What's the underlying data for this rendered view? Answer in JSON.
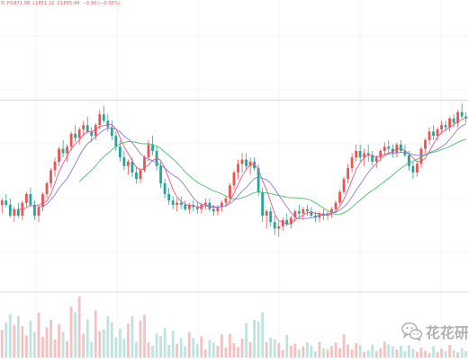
{
  "header": {
    "readout": [
      "O",
      "H1871.98",
      "L1851.22",
      "C1855.44",
      "−0.90 (−0.05%)"
    ]
  },
  "watermark": {
    "icon": "wechat-icon",
    "text": "花花研"
  },
  "colors": {
    "up": "#ef5350",
    "down": "#26a69a",
    "ma_short": "#e7548a",
    "ma_mid": "#7f7fe0",
    "ma_long": "#4cc26a",
    "grid": "#eeeeee",
    "crosshair": "#cccccc"
  },
  "chart_data": {
    "type": "candlestick",
    "panes": [
      "price",
      "volume"
    ],
    "grid": true,
    "price_range": [
      0,
      100
    ],
    "volume_range": [
      0,
      100
    ],
    "crosshair_level": 78.5,
    "moving_averages": [
      "short",
      "mid",
      "long"
    ],
    "candles": [
      [
        30,
        33,
        26,
        32,
        44
      ],
      [
        32,
        35,
        29,
        30,
        56
      ],
      [
        30,
        33,
        24,
        25,
        69
      ],
      [
        25,
        29,
        22,
        28,
        52
      ],
      [
        28,
        31,
        24,
        25,
        66
      ],
      [
        25,
        32,
        23,
        31,
        50
      ],
      [
        31,
        36,
        29,
        35,
        35
      ],
      [
        35,
        38,
        29,
        30,
        59
      ],
      [
        30,
        32,
        23,
        25,
        40
      ],
      [
        25,
        30,
        22,
        29,
        72
      ],
      [
        29,
        36,
        27,
        35,
        33
      ],
      [
        35,
        41,
        33,
        40,
        48
      ],
      [
        40,
        47,
        38,
        46,
        60
      ],
      [
        46,
        52,
        43,
        50,
        29
      ],
      [
        50,
        57,
        48,
        56,
        53
      ],
      [
        56,
        60,
        52,
        54,
        41
      ],
      [
        54,
        58,
        50,
        57,
        26
      ],
      [
        57,
        64,
        55,
        63,
        81
      ],
      [
        63,
        67,
        59,
        61,
        72
      ],
      [
        61,
        66,
        58,
        65,
        97
      ],
      [
        65,
        69,
        62,
        67,
        38
      ],
      [
        67,
        71,
        63,
        64,
        61
      ],
      [
        64,
        66,
        59,
        62,
        25
      ],
      [
        62,
        68,
        60,
        67,
        75
      ],
      [
        67,
        74,
        65,
        72,
        42
      ],
      [
        72,
        76,
        68,
        69,
        45
      ],
      [
        69,
        72,
        64,
        66,
        66
      ],
      [
        66,
        69,
        60,
        62,
        56
      ],
      [
        62,
        64,
        55,
        57,
        32
      ],
      [
        57,
        60,
        50,
        52,
        46
      ],
      [
        52,
        55,
        46,
        48,
        30
      ],
      [
        48,
        51,
        44,
        50,
        54
      ],
      [
        50,
        52,
        43,
        45,
        66
      ],
      [
        45,
        48,
        40,
        42,
        25
      ],
      [
        42,
        47,
        40,
        46,
        59
      ],
      [
        46,
        53,
        45,
        52,
        68
      ],
      [
        52,
        60,
        50,
        58,
        24
      ],
      [
        58,
        62,
        53,
        55,
        19
      ],
      [
        55,
        57,
        46,
        48,
        39
      ],
      [
        48,
        50,
        38,
        40,
        34
      ],
      [
        40,
        42,
        33,
        35,
        47
      ],
      [
        35,
        38,
        30,
        32,
        20
      ],
      [
        32,
        34,
        28,
        30,
        43
      ],
      [
        30,
        33,
        27,
        31,
        22
      ],
      [
        31,
        34,
        28,
        30,
        31
      ],
      [
        30,
        32,
        27,
        28,
        18
      ],
      [
        28,
        31,
        26,
        30,
        40
      ],
      [
        30,
        32,
        27,
        29,
        31
      ],
      [
        29,
        31,
        26,
        28,
        21
      ],
      [
        28,
        31,
        26,
        30,
        34
      ],
      [
        30,
        33,
        28,
        31,
        13
      ],
      [
        31,
        33,
        27,
        28,
        28
      ],
      [
        28,
        30,
        25,
        27,
        24
      ],
      [
        27,
        30,
        25,
        29,
        19
      ],
      [
        29,
        32,
        27,
        31,
        37
      ],
      [
        31,
        34,
        29,
        33,
        16
      ],
      [
        33,
        40,
        31,
        39,
        38
      ],
      [
        39,
        46,
        37,
        45,
        23
      ],
      [
        45,
        51,
        42,
        49,
        17
      ],
      [
        49,
        54,
        45,
        51,
        30
      ],
      [
        51,
        54,
        46,
        48,
        55
      ],
      [
        48,
        52,
        44,
        50,
        25
      ],
      [
        50,
        52,
        46,
        47,
        60
      ],
      [
        47,
        49,
        34,
        36,
        58
      ],
      [
        36,
        38,
        22,
        25,
        72
      ],
      [
        25,
        28,
        19,
        27,
        25
      ],
      [
        27,
        29,
        20,
        22,
        32
      ],
      [
        22,
        25,
        16,
        19,
        29
      ],
      [
        19,
        22,
        15,
        20,
        23
      ],
      [
        20,
        24,
        18,
        23,
        12
      ],
      [
        23,
        26,
        20,
        21,
        36
      ],
      [
        21,
        25,
        19,
        24,
        19
      ],
      [
        24,
        28,
        22,
        27,
        22
      ],
      [
        27,
        30,
        24,
        26,
        13
      ],
      [
        26,
        29,
        23,
        28,
        18
      ],
      [
        28,
        30,
        25,
        27,
        24
      ],
      [
        27,
        29,
        24,
        25,
        19
      ],
      [
        25,
        27,
        22,
        24,
        10
      ],
      [
        24,
        27,
        22,
        26,
        25
      ],
      [
        26,
        28,
        23,
        25,
        15
      ],
      [
        25,
        27,
        23,
        26,
        13
      ],
      [
        26,
        29,
        24,
        28,
        19
      ],
      [
        28,
        32,
        26,
        31,
        24
      ],
      [
        31,
        37,
        30,
        36,
        15
      ],
      [
        36,
        43,
        35,
        42,
        37
      ],
      [
        42,
        49,
        40,
        47,
        21
      ],
      [
        47,
        54,
        45,
        52,
        13
      ],
      [
        52,
        58,
        50,
        55,
        23
      ],
      [
        55,
        58,
        50,
        52,
        20
      ],
      [
        52,
        56,
        48,
        54,
        9
      ],
      [
        54,
        58,
        50,
        53,
        12
      ],
      [
        53,
        55,
        48,
        50,
        21
      ],
      [
        50,
        53,
        47,
        52,
        10
      ],
      [
        52,
        56,
        50,
        55,
        15
      ],
      [
        55,
        59,
        53,
        57,
        25
      ],
      [
        57,
        60,
        54,
        56,
        21
      ],
      [
        56,
        58,
        52,
        54,
        18
      ],
      [
        54,
        59,
        52,
        58,
        13
      ],
      [
        58,
        60,
        54,
        55,
        19
      ],
      [
        55,
        58,
        52,
        53,
        10
      ],
      [
        53,
        55,
        46,
        48,
        20
      ],
      [
        48,
        50,
        42,
        45,
        14
      ],
      [
        45,
        50,
        43,
        49,
        9
      ],
      [
        49,
        57,
        47,
        56,
        16
      ],
      [
        56,
        61,
        54,
        60,
        11
      ],
      [
        60,
        66,
        58,
        64,
        7
      ],
      [
        64,
        67,
        60,
        62,
        18
      ],
      [
        62,
        66,
        60,
        65,
        9
      ],
      [
        65,
        69,
        63,
        67,
        14
      ],
      [
        67,
        69,
        64,
        66,
        10
      ],
      [
        66,
        71,
        64,
        70,
        20
      ],
      [
        70,
        72,
        66,
        68,
        12
      ],
      [
        68,
        74,
        66,
        73,
        8
      ],
      [
        73,
        77,
        70,
        71,
        15
      ],
      [
        71,
        73,
        68,
        70,
        10
      ]
    ]
  }
}
